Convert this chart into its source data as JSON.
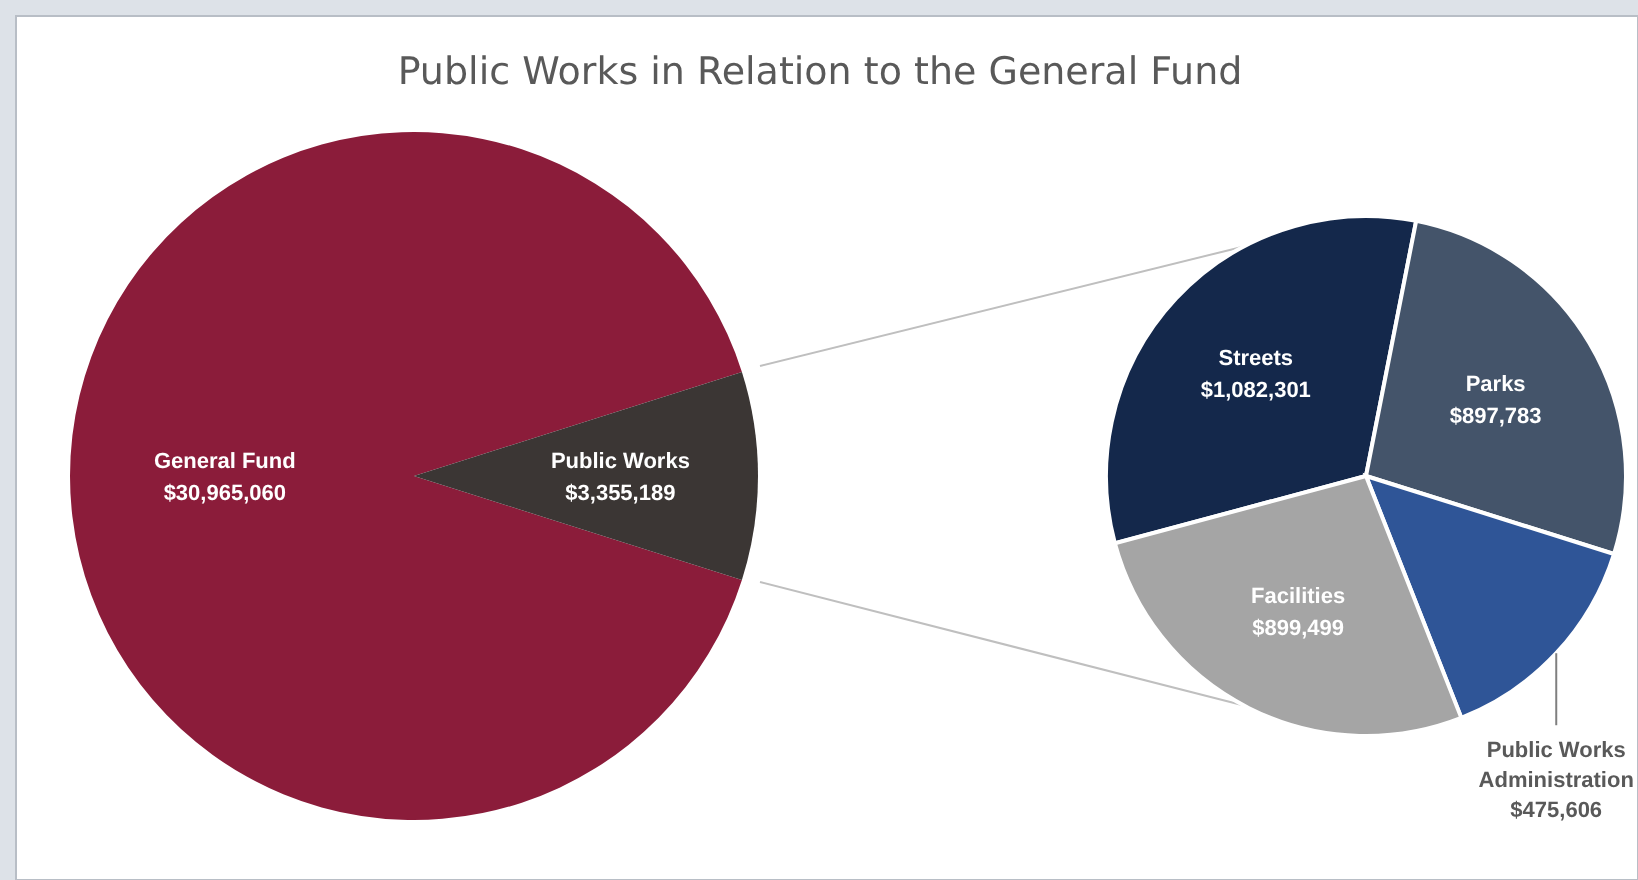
{
  "chart_data": [
    {
      "type": "pie",
      "title": "Public Works in Relation to the General Fund",
      "categories": [
        "General Fund",
        "Public Works"
      ],
      "values": [
        30965060,
        3355189
      ],
      "colors": [
        "#8b1c3a",
        "#3b3634"
      ],
      "value_labels": [
        "$30,965,060",
        "$3,355,189"
      ]
    },
    {
      "type": "pie",
      "categories": [
        "Streets",
        "Parks",
        "Public Works Administration",
        "Facilities"
      ],
      "values": [
        1082301,
        897783,
        475606,
        899499
      ],
      "colors": [
        "#14284b",
        "#44546a",
        "#2f5597",
        "#a5a5a5"
      ],
      "value_labels": [
        "$1,082,301",
        "$897,783",
        "$475,606",
        "$899,499"
      ]
    }
  ]
}
